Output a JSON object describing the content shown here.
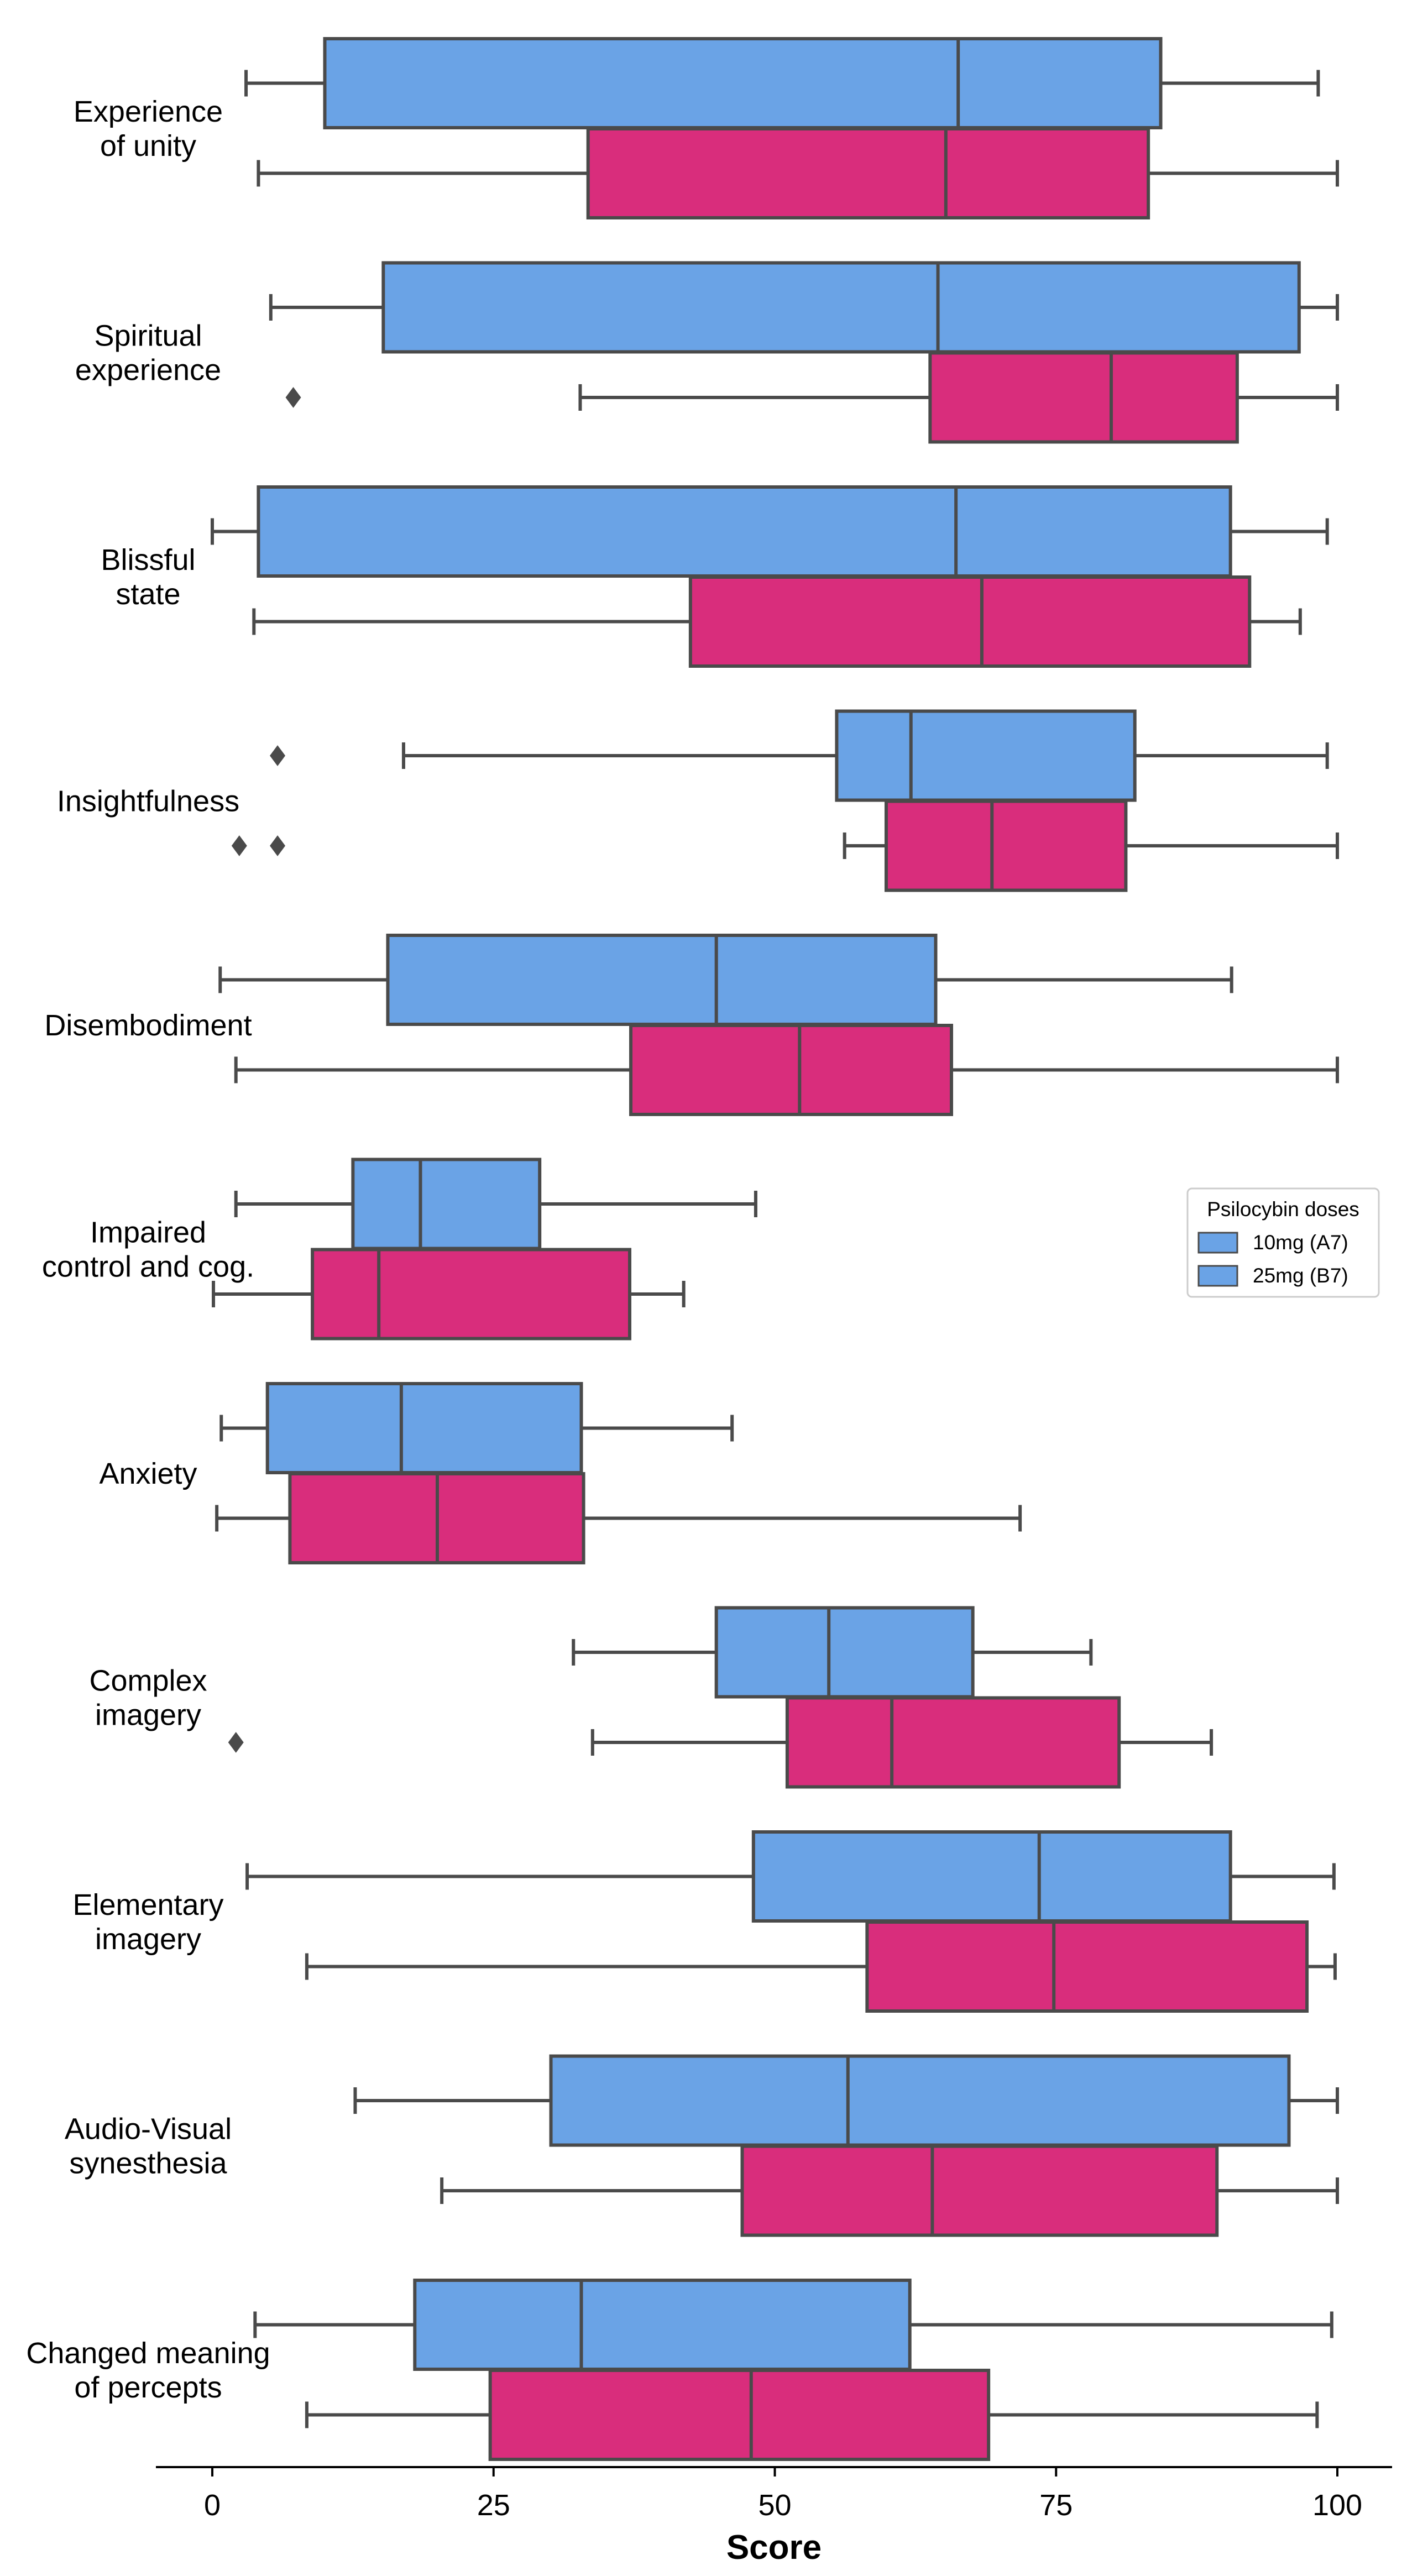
{
  "chart_data": {
    "type": "boxplot",
    "orientation": "horizontal",
    "xlabel": "Score",
    "xlim": [
      -5,
      105
    ],
    "xticks": [
      0,
      25,
      50,
      75,
      100
    ],
    "grid": false,
    "legend": {
      "title": "Psilocybin doses",
      "placement": "right",
      "entries": [
        "10mg (A7)",
        "25mg (B7)"
      ]
    },
    "colors": {
      "10mg (A7)": "#6aa3e6",
      "25mg (B7)": "#d92d7c",
      "edge": "#4a4a4a"
    },
    "categories": [
      "Experience\nof unity",
      "Spiritual\nexperience",
      "Blissful\nstate",
      "Insightfulness",
      "Disembodiment",
      "Impaired\ncontrol and cog.",
      "Anxiety",
      "Complex\nimagery",
      "Elementary\nimagery",
      "Audio-Visual\nsynesthesia",
      "Changed meaning\nof percepts"
    ],
    "series": [
      {
        "name": "10mg (A7)",
        "boxes": [
          {
            "whislo": 3,
            "q1": 10,
            "med": 66.3,
            "q3": 84.3,
            "whishi": 98.3,
            "fliers": []
          },
          {
            "whislo": 5.2,
            "q1": 15.2,
            "med": 64.5,
            "q3": 96.6,
            "whishi": 100,
            "fliers": []
          },
          {
            "whislo": 0,
            "q1": 4.1,
            "med": 66.1,
            "q3": 90.5,
            "whishi": 99.1,
            "fliers": []
          },
          {
            "whislo": 17,
            "q1": 55.5,
            "med": 62.1,
            "q3": 82,
            "whishi": 99.1,
            "fliers": [
              5.8
            ]
          },
          {
            "whislo": 0.7,
            "q1": 15.6,
            "med": 44.8,
            "q3": 64.3,
            "whishi": 90.6,
            "fliers": []
          },
          {
            "whislo": 2.1,
            "q1": 12.5,
            "med": 18.5,
            "q3": 29.1,
            "whishi": 48.3,
            "fliers": []
          },
          {
            "whislo": 0.8,
            "q1": 4.9,
            "med": 16.8,
            "q3": 32.8,
            "whishi": 46.2,
            "fliers": []
          },
          {
            "whislo": 32.1,
            "q1": 44.8,
            "med": 54.8,
            "q3": 67.6,
            "whishi": 78.1,
            "fliers": []
          },
          {
            "whislo": 3.1,
            "q1": 48.1,
            "med": 73.5,
            "q3": 90.5,
            "whishi": 99.7,
            "fliers": []
          },
          {
            "whislo": 12.7,
            "q1": 30.1,
            "med": 56.5,
            "q3": 95.7,
            "whishi": 100,
            "fliers": []
          },
          {
            "whislo": 3.8,
            "q1": 18,
            "med": 32.8,
            "q3": 62,
            "whishi": 99.5,
            "fliers": []
          }
        ]
      },
      {
        "name": "25mg (B7)",
        "boxes": [
          {
            "whislo": 4.1,
            "q1": 33.4,
            "med": 65.2,
            "q3": 83.2,
            "whishi": 100,
            "fliers": []
          },
          {
            "whislo": 32.7,
            "q1": 63.8,
            "med": 79.9,
            "q3": 91.1,
            "whishi": 100,
            "fliers": [
              7.2
            ]
          },
          {
            "whislo": 3.7,
            "q1": 42.5,
            "med": 68.4,
            "q3": 92.2,
            "whishi": 96.7,
            "fliers": []
          },
          {
            "whislo": 56.2,
            "q1": 59.9,
            "med": 69.3,
            "q3": 81.2,
            "whishi": 100,
            "fliers": [
              2.4,
              5.8
            ]
          },
          {
            "whislo": 2.1,
            "q1": 37.2,
            "med": 52.2,
            "q3": 65.7,
            "whishi": 100,
            "fliers": []
          },
          {
            "whislo": 0.1,
            "q1": 8.9,
            "med": 14.8,
            "q3": 37.1,
            "whishi": 41.9,
            "fliers": []
          },
          {
            "whislo": 0.4,
            "q1": 6.9,
            "med": 20,
            "q3": 33,
            "whishi": 71.8,
            "fliers": []
          },
          {
            "whislo": 33.8,
            "q1": 51.1,
            "med": 60.4,
            "q3": 80.6,
            "whishi": 88.8,
            "fliers": [
              2.1
            ]
          },
          {
            "whislo": 8.4,
            "q1": 58.2,
            "med": 74.8,
            "q3": 97.3,
            "whishi": 99.8,
            "fliers": []
          },
          {
            "whislo": 20.4,
            "q1": 47.1,
            "med": 64,
            "q3": 89.3,
            "whishi": 100,
            "fliers": []
          },
          {
            "whislo": 8.4,
            "q1": 24.7,
            "med": 47.9,
            "q3": 69,
            "whishi": 98.2,
            "fliers": []
          }
        ]
      }
    ]
  }
}
